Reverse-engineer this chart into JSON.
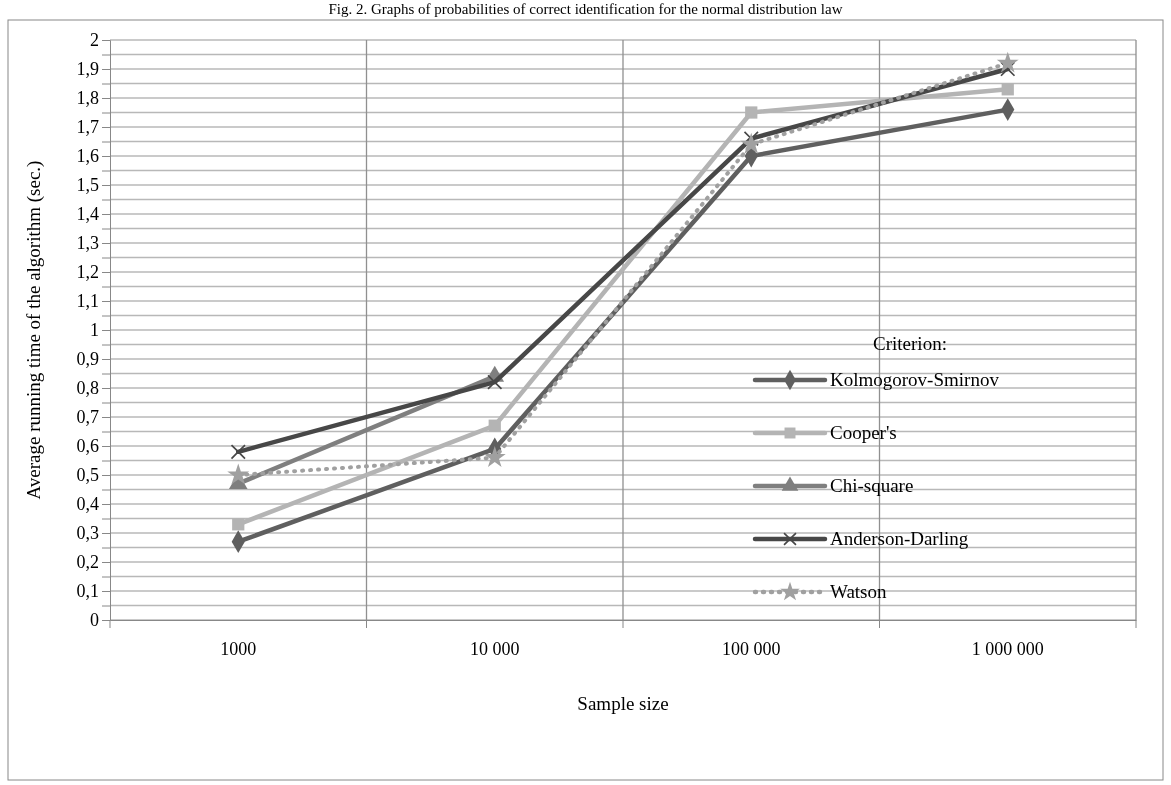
{
  "chart_data": {
    "type": "line",
    "title": "Fig. 2. Graphs of probabilities of correct identification for the normal distribution law",
    "xlabel": "Sample size",
    "ylabel": "Average running time of the algorithm (sec.)",
    "legend_title": "Criterion:",
    "categories": [
      "1000",
      "10 000",
      "100 000",
      "1 000 000"
    ],
    "ylim": [
      0,
      2
    ],
    "yticks": [
      0,
      {
        "value": 0.05,
        "label": null
      },
      {
        "value": 0.1,
        "label": "0,1"
      },
      {
        "value": 0.15,
        "label": null
      },
      {
        "value": 0.2,
        "label": "0,2"
      },
      {
        "value": 0.25,
        "label": null
      },
      {
        "value": 0.3,
        "label": "0,3"
      },
      {
        "value": 0.35,
        "label": null
      },
      {
        "value": 0.4,
        "label": "0,4"
      },
      {
        "value": 0.45,
        "label": null
      },
      {
        "value": 0.5,
        "label": "0,5"
      },
      {
        "value": 0.55,
        "label": null
      },
      {
        "value": 0.6,
        "label": "0,6"
      },
      {
        "value": 0.65,
        "label": null
      },
      {
        "value": 0.7,
        "label": "0,7"
      },
      {
        "value": 0.75,
        "label": null
      },
      {
        "value": 0.8,
        "label": "0,8"
      },
      {
        "value": 0.85,
        "label": null
      },
      {
        "value": 0.9,
        "label": "0,9"
      },
      {
        "value": 0.95,
        "label": null
      },
      1,
      {
        "value": 1.05,
        "label": null
      },
      {
        "value": 1.1,
        "label": "1,1"
      },
      {
        "value": 1.15,
        "label": null
      },
      {
        "value": 1.2,
        "label": "1,2"
      },
      {
        "value": 1.25,
        "label": null
      },
      {
        "value": 1.3,
        "label": "1,3"
      },
      {
        "value": 1.35,
        "label": null
      },
      {
        "value": 1.4,
        "label": "1,4"
      },
      {
        "value": 1.45,
        "label": null
      },
      {
        "value": 1.5,
        "label": "1,5"
      },
      {
        "value": 1.55,
        "label": null
      },
      {
        "value": 1.6,
        "label": "1,6"
      },
      {
        "value": 1.65,
        "label": null
      },
      {
        "value": 1.7,
        "label": "1,7"
      },
      {
        "value": 1.75,
        "label": null
      },
      {
        "value": 1.8,
        "label": "1,8"
      },
      {
        "value": 1.85,
        "label": null
      },
      {
        "value": 1.9,
        "label": "1,9"
      },
      {
        "value": 1.95,
        "label": null
      },
      2
    ],
    "grid": true,
    "legend": "right",
    "series": [
      {
        "name": "Kolmogorov-Smirnov",
        "color": "#5f5f5f",
        "marker": "diamond",
        "line_style": "solid",
        "values": [
          0.27,
          0.59,
          1.6,
          1.76
        ]
      },
      {
        "name": "Cooper's",
        "color": "#b4b4b4",
        "marker": "square",
        "line_style": "solid",
        "values": [
          0.33,
          0.67,
          1.75,
          1.83
        ]
      },
      {
        "name": "Chi-square",
        "color": "#7f7f7f",
        "marker": "triangle",
        "line_style": "solid",
        "values": [
          0.47,
          0.84,
          null,
          null
        ]
      },
      {
        "name": "Anderson-Darling",
        "color": "#474747",
        "marker": "cross",
        "line_style": "solid",
        "values": [
          0.58,
          0.82,
          1.66,
          1.9
        ]
      },
      {
        "name": "Watson",
        "color": "#a0a0a0",
        "marker": "star",
        "line_style": "dotted",
        "values": [
          0.5,
          0.56,
          1.64,
          1.92
        ]
      }
    ]
  }
}
